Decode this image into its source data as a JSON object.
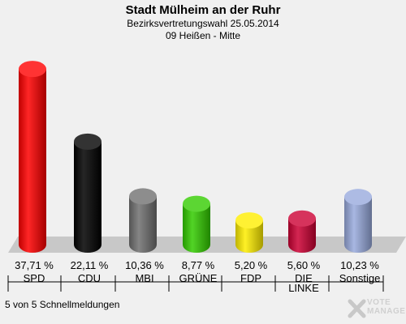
{
  "header": {
    "title": "Stadt Mülheim an der Ruhr",
    "subtitle": "Bezirksvertretungswahl 25.05.2014",
    "district": "09 Heißen - Mitte"
  },
  "footer": {
    "status": "5 von 5 Schnellmeldungen"
  },
  "logo": {
    "line1": "VOTE",
    "line2": "MANAGER"
  },
  "chart_data": {
    "type": "bar",
    "categories": [
      "SPD",
      "CDU",
      "MBI",
      "GRÜNE",
      "FDP",
      "DIE LINKE",
      "Sonstige"
    ],
    "category_lines": [
      [
        "SPD"
      ],
      [
        "CDU"
      ],
      [
        "MBI"
      ],
      [
        "GRÜNE"
      ],
      [
        "FDP"
      ],
      [
        "DIE",
        "LINKE"
      ],
      [
        "Sonstige"
      ]
    ],
    "values": [
      37.71,
      22.11,
      10.36,
      8.77,
      5.2,
      5.6,
      10.23
    ],
    "value_labels": [
      "37,71 %",
      "22,11 %",
      "10,36 %",
      "8,77 %",
      "5,20 %",
      "5,60 %",
      "10,23 %"
    ],
    "colors": [
      "#ff0000",
      "#000000",
      "#707070",
      "#33cc00",
      "#ffee00",
      "#cc0033",
      "#99aadd"
    ],
    "title": "Stadt Mülheim an der Ruhr",
    "ylim": [
      0,
      40
    ],
    "grid": false
  }
}
